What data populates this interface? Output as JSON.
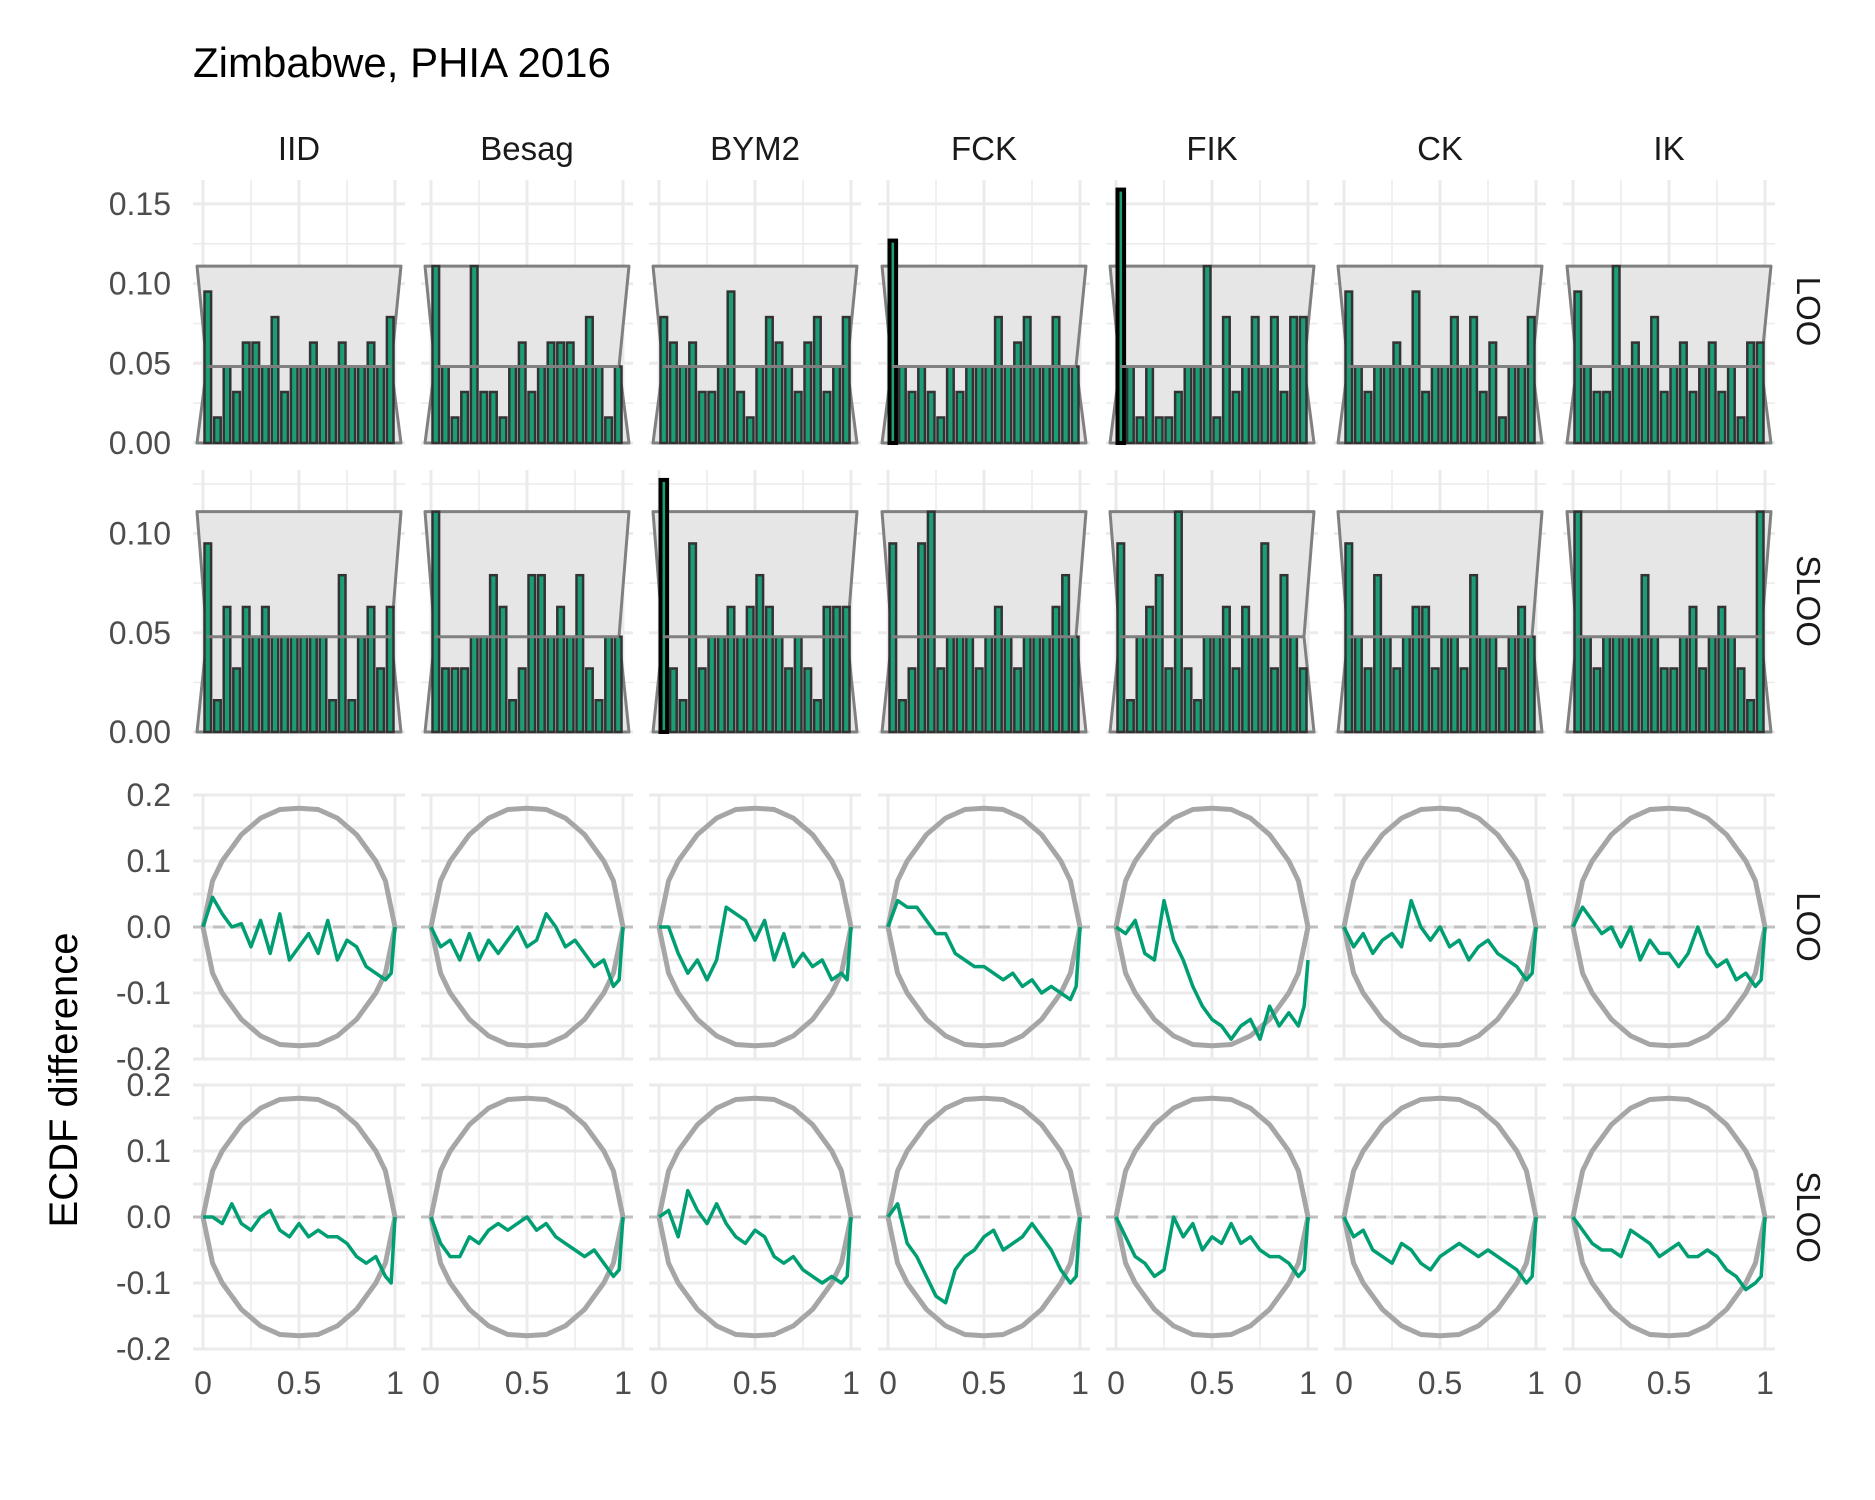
{
  "title": "Zimbabwe, PHIA 2016",
  "chart_data": {
    "type": "faceted histogram and line",
    "title": "Zimbabwe, PHIA 2016",
    "ylabel": "ECDF difference",
    "xlabel": "",
    "grid": true,
    "columns": [
      "IID",
      "Besag",
      "BYM2",
      "FCK",
      "FIK",
      "CK",
      "IK"
    ],
    "row_labels": [
      "LOO",
      "SLOO",
      "LOO",
      "SLOO"
    ],
    "x_ticks": [
      "0",
      "0.5",
      "1"
    ],
    "histogram_y_ticks": [
      "0.00",
      "0.05",
      "0.10",
      "0.15"
    ],
    "ecdf_y_ticks": [
      "-0.2",
      "-0.1",
      "0.0",
      "0.1",
      "0.2"
    ],
    "colors": {
      "bar_fill": "#1b9e77",
      "bar_edge": "#333333",
      "out_of_band_edge": "#000000",
      "band_fill": "#e6e6e6",
      "band_line": "#808080",
      "ecdf_line": "#009e73",
      "envelope": "#a6a6a6",
      "grid": "#ebebeb"
    },
    "histogram_band": {
      "lower": 0.0,
      "mean": 0.048,
      "upper": 0.111,
      "bins": 20
    },
    "histograms": {
      "LOO": [
        {
          "model": "IID",
          "values": [
            0.095,
            0.016,
            0.048,
            0.032,
            0.063,
            0.063,
            0.048,
            0.079,
            0.032,
            0.048,
            0.048,
            0.063,
            0.048,
            0.048,
            0.063,
            0.048,
            0.048,
            0.063,
            0.048,
            0.079
          ]
        },
        {
          "model": "Besag",
          "values": [
            0.111,
            0.048,
            0.016,
            0.032,
            0.111,
            0.032,
            0.032,
            0.016,
            0.048,
            0.063,
            0.032,
            0.048,
            0.063,
            0.063,
            0.063,
            0.048,
            0.079,
            0.048,
            0.016,
            0.048
          ]
        },
        {
          "model": "BYM2",
          "values": [
            0.079,
            0.063,
            0.048,
            0.063,
            0.032,
            0.032,
            0.048,
            0.095,
            0.032,
            0.016,
            0.048,
            0.079,
            0.063,
            0.048,
            0.032,
            0.063,
            0.079,
            0.032,
            0.048,
            0.079
          ]
        },
        {
          "model": "FCK",
          "values": [
            0.127,
            0.048,
            0.032,
            0.048,
            0.032,
            0.016,
            0.048,
            0.032,
            0.048,
            0.048,
            0.048,
            0.079,
            0.048,
            0.063,
            0.079,
            0.048,
            0.048,
            0.079,
            0.048,
            0.048
          ]
        },
        {
          "model": "FIK",
          "values": [
            0.159,
            0.048,
            0.016,
            0.048,
            0.016,
            0.016,
            0.032,
            0.048,
            0.048,
            0.111,
            0.016,
            0.079,
            0.032,
            0.048,
            0.079,
            0.048,
            0.079,
            0.032,
            0.079,
            0.079
          ]
        },
        {
          "model": "CK",
          "values": [
            0.095,
            0.048,
            0.032,
            0.048,
            0.048,
            0.063,
            0.048,
            0.095,
            0.032,
            0.048,
            0.048,
            0.079,
            0.048,
            0.079,
            0.032,
            0.063,
            0.016,
            0.048,
            0.048,
            0.079
          ]
        },
        {
          "model": "IK",
          "values": [
            0.095,
            0.048,
            0.032,
            0.032,
            0.111,
            0.048,
            0.063,
            0.048,
            0.079,
            0.032,
            0.048,
            0.063,
            0.032,
            0.048,
            0.063,
            0.032,
            0.048,
            0.016,
            0.063,
            0.063
          ]
        }
      ],
      "SLOO": [
        {
          "model": "IID",
          "values": [
            0.095,
            0.016,
            0.063,
            0.032,
            0.063,
            0.048,
            0.063,
            0.048,
            0.048,
            0.048,
            0.048,
            0.048,
            0.048,
            0.016,
            0.079,
            0.016,
            0.048,
            0.063,
            0.032,
            0.063
          ]
        },
        {
          "model": "Besag",
          "values": [
            0.111,
            0.032,
            0.032,
            0.032,
            0.048,
            0.048,
            0.079,
            0.063,
            0.016,
            0.032,
            0.079,
            0.079,
            0.048,
            0.063,
            0.048,
            0.079,
            0.032,
            0.016,
            0.048,
            0.048
          ]
        },
        {
          "model": "BYM2",
          "values": [
            0.127,
            0.032,
            0.016,
            0.095,
            0.032,
            0.048,
            0.048,
            0.063,
            0.048,
            0.063,
            0.079,
            0.063,
            0.048,
            0.032,
            0.048,
            0.032,
            0.016,
            0.063,
            0.063,
            0.063
          ]
        },
        {
          "model": "FCK",
          "values": [
            0.095,
            0.016,
            0.032,
            0.095,
            0.111,
            0.032,
            0.048,
            0.048,
            0.048,
            0.032,
            0.048,
            0.063,
            0.048,
            0.032,
            0.048,
            0.048,
            0.048,
            0.063,
            0.079,
            0.048
          ]
        },
        {
          "model": "FIK",
          "values": [
            0.095,
            0.016,
            0.048,
            0.063,
            0.079,
            0.032,
            0.111,
            0.032,
            0.016,
            0.048,
            0.048,
            0.063,
            0.032,
            0.063,
            0.048,
            0.095,
            0.032,
            0.079,
            0.048,
            0.032
          ]
        },
        {
          "model": "CK",
          "values": [
            0.095,
            0.048,
            0.032,
            0.079,
            0.048,
            0.032,
            0.048,
            0.063,
            0.063,
            0.032,
            0.048,
            0.048,
            0.032,
            0.079,
            0.048,
            0.048,
            0.032,
            0.048,
            0.063,
            0.048
          ]
        },
        {
          "model": "IK",
          "values": [
            0.111,
            0.048,
            0.032,
            0.048,
            0.048,
            0.048,
            0.048,
            0.079,
            0.048,
            0.032,
            0.032,
            0.048,
            0.063,
            0.032,
            0.048,
            0.063,
            0.048,
            0.032,
            0.016,
            0.111
          ]
        }
      ]
    },
    "ecdf_envelope": {
      "x": [
        0,
        0.05,
        0.1,
        0.2,
        0.3,
        0.4,
        0.5,
        0.6,
        0.7,
        0.8,
        0.9,
        0.95,
        1
      ],
      "upper": [
        0,
        0.07,
        0.1,
        0.14,
        0.165,
        0.178,
        0.18,
        0.178,
        0.165,
        0.14,
        0.1,
        0.07,
        0
      ]
    },
    "ecdf_x": [
      0,
      0.05,
      0.1,
      0.15,
      0.2,
      0.25,
      0.3,
      0.35,
      0.4,
      0.45,
      0.5,
      0.55,
      0.6,
      0.65,
      0.7,
      0.75,
      0.8,
      0.85,
      0.9,
      0.95,
      0.98,
      1
    ],
    "ecdf_difference": {
      "LOO": [
        {
          "model": "IID",
          "values": [
            0,
            0.045,
            0.02,
            0,
            0.005,
            -0.03,
            0.01,
            -0.04,
            0.02,
            -0.05,
            -0.03,
            -0.01,
            -0.04,
            0.01,
            -0.05,
            -0.02,
            -0.03,
            -0.06,
            -0.07,
            -0.08,
            -0.07,
            0
          ]
        },
        {
          "model": "Besag",
          "values": [
            0,
            -0.03,
            -0.02,
            -0.05,
            -0.01,
            -0.05,
            -0.02,
            -0.04,
            -0.02,
            0,
            -0.03,
            -0.02,
            0.02,
            0,
            -0.03,
            -0.02,
            -0.04,
            -0.06,
            -0.05,
            -0.09,
            -0.08,
            0
          ]
        },
        {
          "model": "BYM2",
          "values": [
            0,
            0,
            -0.04,
            -0.07,
            -0.05,
            -0.08,
            -0.05,
            0.03,
            0.02,
            0.01,
            -0.02,
            0.01,
            -0.05,
            -0.01,
            -0.06,
            -0.04,
            -0.06,
            -0.05,
            -0.08,
            -0.07,
            -0.08,
            0
          ]
        },
        {
          "model": "FCK",
          "values": [
            0,
            0.04,
            0.03,
            0.03,
            0.01,
            -0.01,
            -0.01,
            -0.04,
            -0.05,
            -0.06,
            -0.06,
            -0.07,
            -0.08,
            -0.07,
            -0.09,
            -0.08,
            -0.1,
            -0.09,
            -0.1,
            -0.11,
            -0.09,
            0
          ]
        },
        {
          "model": "FIK",
          "values": [
            0,
            -0.01,
            0.01,
            -0.04,
            -0.05,
            0.04,
            -0.02,
            -0.05,
            -0.09,
            -0.12,
            -0.14,
            -0.15,
            -0.17,
            -0.15,
            -0.14,
            -0.17,
            -0.12,
            -0.15,
            -0.13,
            -0.15,
            -0.12,
            -0.05
          ]
        },
        {
          "model": "CK",
          "values": [
            0,
            -0.03,
            -0.01,
            -0.04,
            -0.02,
            -0.01,
            -0.03,
            0.04,
            0,
            -0.02,
            0,
            -0.03,
            -0.02,
            -0.05,
            -0.03,
            -0.02,
            -0.04,
            -0.05,
            -0.06,
            -0.08,
            -0.07,
            0
          ]
        },
        {
          "model": "IK",
          "values": [
            0,
            0.03,
            0.01,
            -0.01,
            0,
            -0.03,
            0,
            -0.05,
            -0.02,
            -0.04,
            -0.04,
            -0.06,
            -0.04,
            0,
            -0.04,
            -0.06,
            -0.05,
            -0.08,
            -0.07,
            -0.09,
            -0.08,
            0
          ]
        }
      ],
      "SLOO": [
        {
          "model": "IID",
          "values": [
            0,
            0,
            -0.01,
            0.02,
            -0.01,
            -0.02,
            0,
            0.01,
            -0.02,
            -0.03,
            -0.01,
            -0.03,
            -0.02,
            -0.03,
            -0.03,
            -0.04,
            -0.06,
            -0.07,
            -0.06,
            -0.09,
            -0.1,
            0
          ]
        },
        {
          "model": "Besag",
          "values": [
            0,
            -0.04,
            -0.06,
            -0.06,
            -0.03,
            -0.04,
            -0.02,
            -0.01,
            -0.02,
            -0.01,
            0,
            -0.02,
            -0.01,
            -0.03,
            -0.04,
            -0.05,
            -0.06,
            -0.05,
            -0.07,
            -0.09,
            -0.08,
            0
          ]
        },
        {
          "model": "BYM2",
          "values": [
            0,
            0.01,
            -0.03,
            0.04,
            0.01,
            -0.01,
            0.02,
            -0.01,
            -0.03,
            -0.04,
            -0.02,
            -0.03,
            -0.06,
            -0.07,
            -0.06,
            -0.08,
            -0.09,
            -0.1,
            -0.09,
            -0.1,
            -0.09,
            0
          ]
        },
        {
          "model": "FCK",
          "values": [
            0,
            0.02,
            -0.04,
            -0.06,
            -0.09,
            -0.12,
            -0.13,
            -0.08,
            -0.06,
            -0.05,
            -0.03,
            -0.02,
            -0.05,
            -0.04,
            -0.03,
            -0.01,
            -0.03,
            -0.05,
            -0.08,
            -0.1,
            -0.09,
            0
          ]
        },
        {
          "model": "FIK",
          "values": [
            0,
            -0.03,
            -0.06,
            -0.07,
            -0.09,
            -0.08,
            0,
            -0.03,
            -0.01,
            -0.05,
            -0.03,
            -0.04,
            -0.01,
            -0.04,
            -0.03,
            -0.05,
            -0.06,
            -0.06,
            -0.07,
            -0.09,
            -0.08,
            0
          ]
        },
        {
          "model": "CK",
          "values": [
            0,
            -0.03,
            -0.02,
            -0.05,
            -0.06,
            -0.07,
            -0.04,
            -0.05,
            -0.07,
            -0.08,
            -0.06,
            -0.05,
            -0.04,
            -0.05,
            -0.06,
            -0.05,
            -0.06,
            -0.07,
            -0.08,
            -0.1,
            -0.09,
            0
          ]
        },
        {
          "model": "IK",
          "values": [
            0,
            -0.02,
            -0.04,
            -0.05,
            -0.05,
            -0.06,
            -0.02,
            -0.03,
            -0.04,
            -0.06,
            -0.05,
            -0.04,
            -0.06,
            -0.06,
            -0.05,
            -0.06,
            -0.08,
            -0.09,
            -0.11,
            -0.1,
            -0.09,
            0
          ]
        }
      ]
    }
  }
}
